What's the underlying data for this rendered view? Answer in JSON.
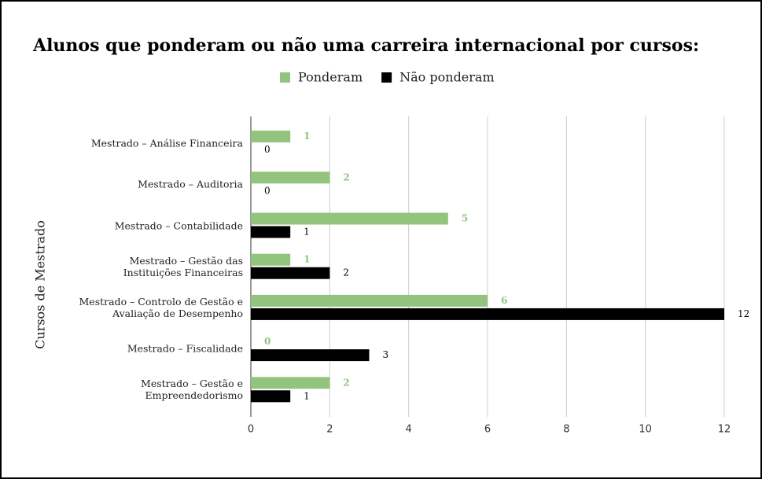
{
  "chart_data": {
    "type": "bar",
    "orientation": "horizontal",
    "title": "Alunos que ponderam ou não uma carreira internacional por cursos:",
    "y_label": "Cursos de Mestrado",
    "categories": [
      "Mestrado – Análise Financeira",
      "Mestrado – Auditoria",
      "Mestrado – Contabilidade",
      "Mestrado – Gestão das\nInstituições Financeiras",
      "Mestrado – Controlo de Gestão e\nAvaliação de Desempenho",
      "Mestrado – Fiscalidade",
      "Mestrado – Gestão e\nEmpreendedorismo"
    ],
    "series": [
      {
        "name": "Ponderam",
        "color": "#93c47d",
        "values": [
          1,
          2,
          5,
          1,
          6,
          0,
          2
        ]
      },
      {
        "name": "Não ponderam",
        "color": "#000000",
        "values": [
          0,
          0,
          1,
          2,
          12,
          3,
          1
        ]
      }
    ],
    "xlim": [
      0,
      12
    ],
    "xticks": [
      0,
      2,
      4,
      6,
      8,
      10,
      12
    ],
    "grid": true,
    "legend": "top"
  }
}
